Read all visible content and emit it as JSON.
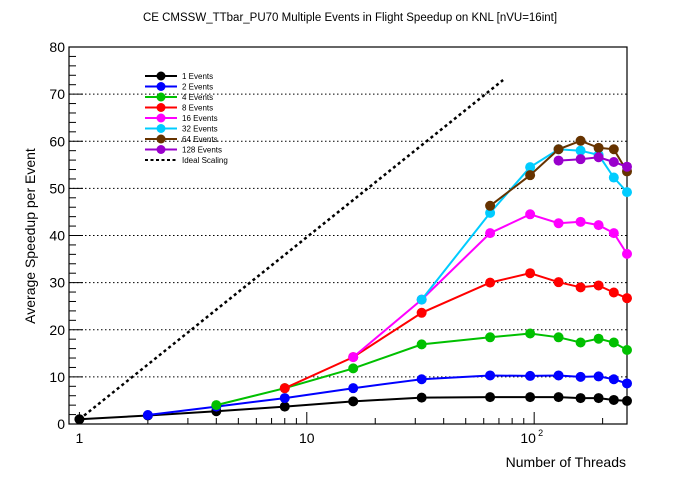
{
  "chart_data": {
    "type": "line",
    "title": "CE CMSSW_TTbar_PU70 Multiple Events in Flight Speedup on KNL [nVU=16int]",
    "xlabel": "Number of Threads",
    "ylabel": "Average Speedup per Event",
    "xscale": "log",
    "xlim": [
      0.9,
      256
    ],
    "ylim": [
      0,
      80
    ],
    "yticks": [
      "0",
      "10",
      "20",
      "30",
      "40",
      "50",
      "60",
      "70",
      "80"
    ],
    "xticks": [
      "1",
      "10",
      "10",
      "2"
    ],
    "grid": "horizontal dotted",
    "legend_position": "top-left",
    "series": [
      {
        "name": "1 Events",
        "color": "#000000",
        "x": [
          1,
          2,
          4,
          8,
          16,
          32,
          64,
          96,
          128,
          160,
          192,
          224,
          256
        ],
        "y": [
          1.0,
          1.8,
          2.7,
          3.7,
          4.8,
          5.6,
          5.7,
          5.7,
          5.7,
          5.5,
          5.5,
          5.1,
          4.9
        ]
      },
      {
        "name": "2 Events",
        "color": "#0000ff",
        "x": [
          2,
          4,
          8,
          16,
          32,
          64,
          96,
          128,
          160,
          192,
          224,
          256
        ],
        "y": [
          1.9,
          3.7,
          5.5,
          7.6,
          9.5,
          10.3,
          10.2,
          10.3,
          10.0,
          10.1,
          9.5,
          8.6
        ]
      },
      {
        "name": "4 Events",
        "color": "#00c000",
        "x": [
          4,
          8,
          16,
          32,
          64,
          96,
          128,
          160,
          192,
          224,
          256
        ],
        "y": [
          4.0,
          7.6,
          11.8,
          16.9,
          18.4,
          19.2,
          18.4,
          17.3,
          18.1,
          17.3,
          15.7
        ]
      },
      {
        "name": "8 Events",
        "color": "#ff0000",
        "x": [
          8,
          16,
          32,
          64,
          96,
          128,
          160,
          192,
          224,
          256
        ],
        "y": [
          7.6,
          14.2,
          23.6,
          30.0,
          32.0,
          30.1,
          29.0,
          29.4,
          27.9,
          26.7
        ]
      },
      {
        "name": "16 Events",
        "color": "#ff00ff",
        "x": [
          16,
          32,
          64,
          96,
          128,
          160,
          192,
          224,
          256
        ],
        "y": [
          14.2,
          26.4,
          40.5,
          44.5,
          42.6,
          42.9,
          42.2,
          40.5,
          36.1
        ]
      },
      {
        "name": "32 Events",
        "color": "#00ccff",
        "x": [
          32,
          64,
          96,
          128,
          160,
          192,
          224,
          256
        ],
        "y": [
          26.4,
          44.8,
          54.5,
          58.3,
          58.0,
          57.1,
          52.3,
          49.2
        ]
      },
      {
        "name": "64 Events",
        "color": "#663300",
        "x": [
          64,
          96,
          128,
          160,
          192,
          224,
          256
        ],
        "y": [
          46.3,
          52.8,
          58.3,
          60.1,
          58.6,
          58.3,
          53.6
        ]
      },
      {
        "name": "128 Events",
        "color": "#9900cc",
        "x": [
          128,
          160,
          192,
          224,
          256
        ],
        "y": [
          55.9,
          56.2,
          56.6,
          55.6,
          54.6
        ]
      },
      {
        "name": "Ideal Scaling",
        "color": "#000000",
        "dashed": true,
        "x": [
          1,
          73
        ],
        "y": [
          1,
          73
        ]
      }
    ]
  }
}
